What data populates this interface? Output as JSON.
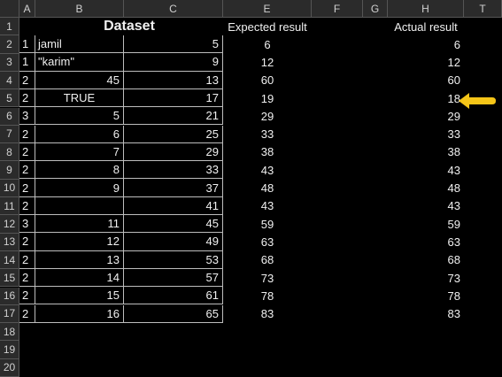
{
  "columns": [
    "A",
    "B",
    "C",
    "E",
    "F",
    "G",
    "H",
    "T"
  ],
  "rows": [
    "1",
    "2",
    "3",
    "4",
    "5",
    "6",
    "7",
    "8",
    "9",
    "10",
    "11",
    "12",
    "13",
    "14",
    "15",
    "16",
    "17",
    "18",
    "19",
    "20"
  ],
  "title": "Dataset",
  "expected_header": "Expected result",
  "actual_header": "Actual result",
  "data": [
    {
      "a": "1",
      "b": "jamil",
      "c": "5",
      "e": "6",
      "h": "6"
    },
    {
      "a": "1",
      "b": "\"karim\"",
      "c": "9",
      "e": "12",
      "h": "12"
    },
    {
      "a": "2",
      "b": "45",
      "c": "13",
      "e": "60",
      "h": "60"
    },
    {
      "a": "2",
      "b": "TRUE",
      "c": "17",
      "e": "19",
      "h": "18"
    },
    {
      "a": "3",
      "b": "5",
      "c": "21",
      "e": "29",
      "h": "29"
    },
    {
      "a": "2",
      "b": "6",
      "c": "25",
      "e": "33",
      "h": "33"
    },
    {
      "a": "2",
      "b": "7",
      "c": "29",
      "e": "38",
      "h": "38"
    },
    {
      "a": "2",
      "b": "8",
      "c": "33",
      "e": "43",
      "h": "43"
    },
    {
      "a": "2",
      "b": "9",
      "c": "37",
      "e": "48",
      "h": "48"
    },
    {
      "a": "2",
      "b": "",
      "c": "41",
      "e": "43",
      "h": "43"
    },
    {
      "a": "3",
      "b": "11",
      "c": "45",
      "e": "59",
      "h": "59"
    },
    {
      "a": "2",
      "b": "12",
      "c": "49",
      "e": "63",
      "h": "63"
    },
    {
      "a": "2",
      "b": "13",
      "c": "53",
      "e": "68",
      "h": "68"
    },
    {
      "a": "2",
      "b": "14",
      "c": "57",
      "e": "73",
      "h": "73"
    },
    {
      "a": "2",
      "b": "15",
      "c": "61",
      "e": "78",
      "h": "78"
    },
    {
      "a": "2",
      "b": "16",
      "c": "65",
      "e": "83",
      "h": "83"
    }
  ],
  "arrow_color": "#f5c518"
}
